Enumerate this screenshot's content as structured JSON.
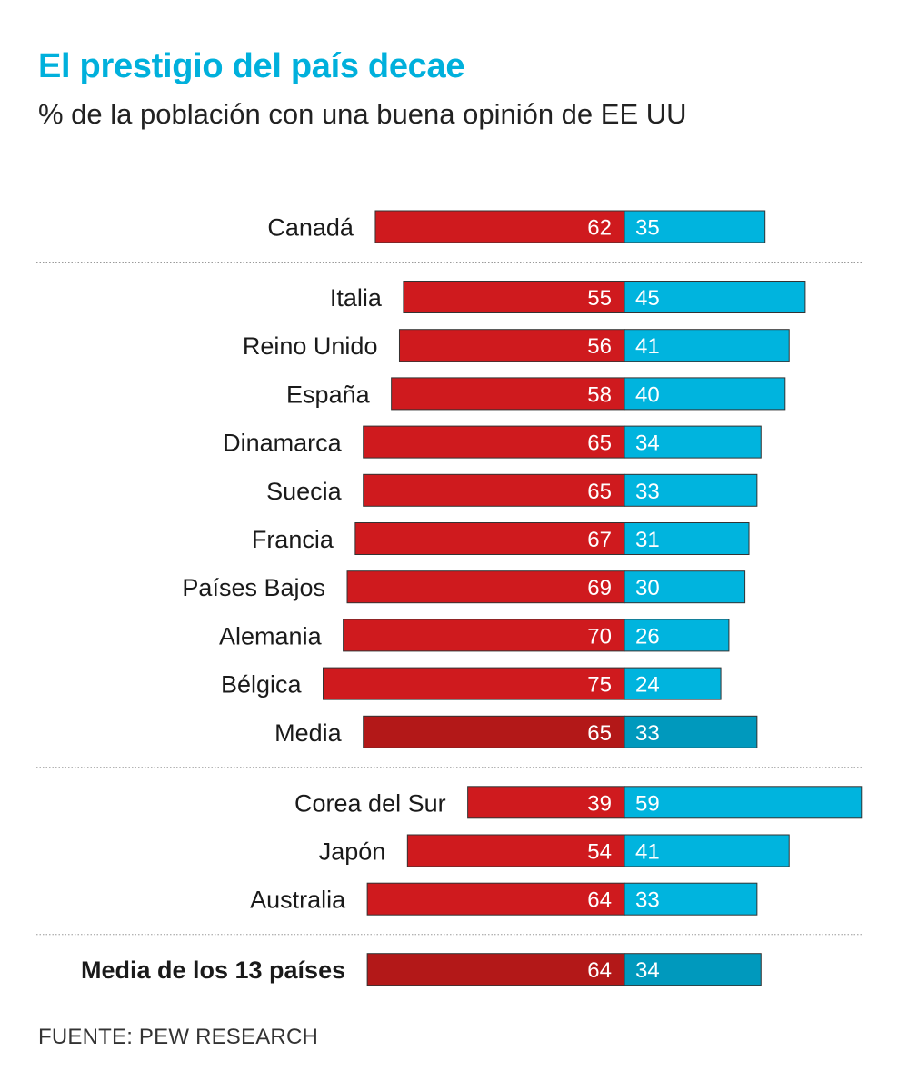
{
  "title": "El prestigio del país decae",
  "subtitle": "% de la población con una buena opinión de EE UU",
  "source": "FUENTE: PEW RESEARCH",
  "colors": {
    "title": "#00b0dc",
    "negative": "#cf1a1e",
    "positive": "#00b4de",
    "negative_avg": "#b31818",
    "positive_avg": "#0099bd",
    "separator": "#9a9a9a"
  },
  "chart_data": {
    "type": "bar",
    "orientation": "horizontal-diverging",
    "title": "El prestigio del país decae",
    "subtitle": "% de la población con una buena opinión de EE UU",
    "legend": "none",
    "grid": false,
    "groups": [
      {
        "rows": [
          {
            "label": "Canadá",
            "left": 62,
            "right": 35,
            "emphasis": false
          }
        ]
      },
      {
        "rows": [
          {
            "label": "Italia",
            "left": 55,
            "right": 45,
            "emphasis": false
          },
          {
            "label": "Reino Unido",
            "left": 56,
            "right": 41,
            "emphasis": false
          },
          {
            "label": "España",
            "left": 58,
            "right": 40,
            "emphasis": false
          },
          {
            "label": "Dinamarca",
            "left": 65,
            "right": 34,
            "emphasis": false
          },
          {
            "label": "Suecia",
            "left": 65,
            "right": 33,
            "emphasis": false
          },
          {
            "label": "Francia",
            "left": 67,
            "right": 31,
            "emphasis": false
          },
          {
            "label": "Países Bajos",
            "left": 69,
            "right": 30,
            "emphasis": false
          },
          {
            "label": "Alemania",
            "left": 70,
            "right": 26,
            "emphasis": false
          },
          {
            "label": "Bélgica",
            "left": 75,
            "right": 24,
            "emphasis": false
          },
          {
            "label": "Media",
            "left": 65,
            "right": 33,
            "emphasis": "avg"
          }
        ]
      },
      {
        "rows": [
          {
            "label": "Corea del Sur",
            "left": 39,
            "right": 59,
            "emphasis": false
          },
          {
            "label": "Japón",
            "left": 54,
            "right": 41,
            "emphasis": false
          },
          {
            "label": "Australia",
            "left": 64,
            "right": 33,
            "emphasis": false
          }
        ]
      },
      {
        "rows": [
          {
            "label": "Media de los 13 países",
            "left": 64,
            "right": 34,
            "emphasis": "total"
          }
        ]
      }
    ]
  }
}
